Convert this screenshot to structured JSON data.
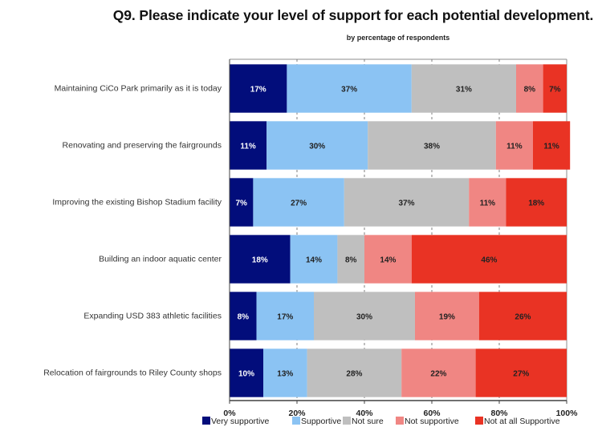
{
  "chart_data": {
    "type": "bar",
    "orientation": "horizontal",
    "stacked": true,
    "title": "Q9. Please indicate your level of support for each potential development.",
    "subtitle": "by percentage of respondents",
    "xlabel": "",
    "ylabel": "",
    "xlim": [
      0,
      100
    ],
    "x_ticks": [
      "0%",
      "20%",
      "40%",
      "60%",
      "80%",
      "100%"
    ],
    "x_tick_values": [
      0,
      20,
      40,
      60,
      80,
      100
    ],
    "grid": "vertical dashed",
    "legend_position": "bottom",
    "categories": [
      "Maintaining CiCo Park primarily as it is today",
      "Renovating and preserving the fairgrounds",
      "Improving the existing Bishop Stadium facility",
      "Building an indoor aquatic center",
      "Expanding USD 383 athletic facilities",
      "Relocation of fairgrounds to Riley County shops"
    ],
    "series": [
      {
        "name": "Very supportive",
        "color": "#020d7b",
        "label_color": "#ffffff",
        "values": [
          17,
          11,
          7,
          18,
          8,
          10
        ]
      },
      {
        "name": "Supportive",
        "color": "#8bc3f3",
        "label_color": "#222222",
        "values": [
          37,
          30,
          27,
          14,
          17,
          13
        ]
      },
      {
        "name": "Not sure",
        "color": "#bfbfbf",
        "label_color": "#222222",
        "values": [
          31,
          38,
          37,
          8,
          30,
          28
        ]
      },
      {
        "name": "Not supportive",
        "color": "#f08683",
        "label_color": "#222222",
        "values": [
          8,
          11,
          11,
          14,
          19,
          22
        ]
      },
      {
        "name": "Not at all Supportive",
        "color": "#e93324",
        "label_color": "#222222",
        "values": [
          7,
          11,
          18,
          46,
          26,
          27
        ]
      }
    ],
    "data_labels": [
      [
        "17%",
        "37%",
        "31%",
        "8%",
        "7%"
      ],
      [
        "11%",
        "30%",
        "38%",
        "11%",
        "11%"
      ],
      [
        "7%",
        "27%",
        "37%",
        "11%",
        "18%"
      ],
      [
        "18%",
        "14%",
        "8%",
        "14%",
        "46%"
      ],
      [
        "8%",
        "17%",
        "30%",
        "19%",
        "26%"
      ],
      [
        "10%",
        "13%",
        "28%",
        "22%",
        "27%"
      ]
    ]
  }
}
